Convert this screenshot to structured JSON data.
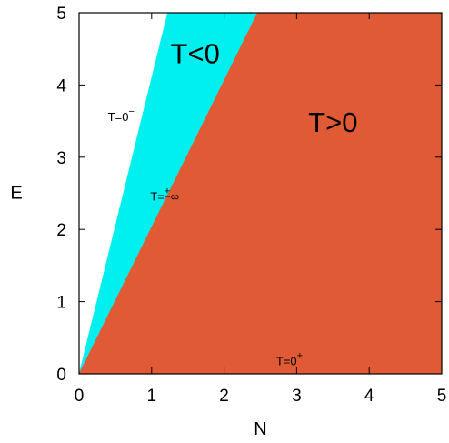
{
  "chart_data": {
    "type": "area",
    "title": "",
    "xlabel": "N",
    "ylabel": "E",
    "xlim": [
      0,
      5
    ],
    "ylim": [
      0,
      5
    ],
    "x_ticks": [
      "0",
      "1",
      "2",
      "3",
      "4",
      "5"
    ],
    "y_ticks": [
      "0",
      "1",
      "2",
      "3",
      "4",
      "5"
    ],
    "grid": false,
    "series": [
      {
        "region": "upper-white",
        "boundary_points": [
          [
            0,
            0
          ],
          [
            1.22,
            5
          ],
          [
            0,
            5
          ]
        ],
        "color": "#ffffff"
      },
      {
        "region": "negative",
        "boundary_points": [
          [
            0,
            0
          ],
          [
            2.46,
            5
          ],
          [
            1.22,
            5
          ]
        ],
        "color": "#00f0f0"
      },
      {
        "region": "positive",
        "boundary_points": [
          [
            0,
            0
          ],
          [
            5,
            0
          ],
          [
            5,
            5
          ],
          [
            2.46,
            5
          ]
        ],
        "color": "#e05a35"
      }
    ],
    "annotations": [
      {
        "id": "t-neg",
        "main": "T<0",
        "sup": "",
        "x": 1.6,
        "y": 4.3,
        "size": "big"
      },
      {
        "id": "t-pos",
        "main": "T>0",
        "sup": "",
        "x": 3.5,
        "y": 3.35,
        "size": "big"
      },
      {
        "id": "t-zero-minus",
        "main": "T=0",
        "sup": "−",
        "x": 0.58,
        "y": 3.5,
        "size": "small"
      },
      {
        "id": "t-infinity",
        "main": "T=",
        "sup": "+",
        "after": "−∞",
        "x": 1.18,
        "y": 2.4,
        "size": "small"
      },
      {
        "id": "t-zero-plus",
        "main": "T=0",
        "sup": "+",
        "x": 2.9,
        "y": 0.12,
        "size": "small"
      }
    ]
  }
}
